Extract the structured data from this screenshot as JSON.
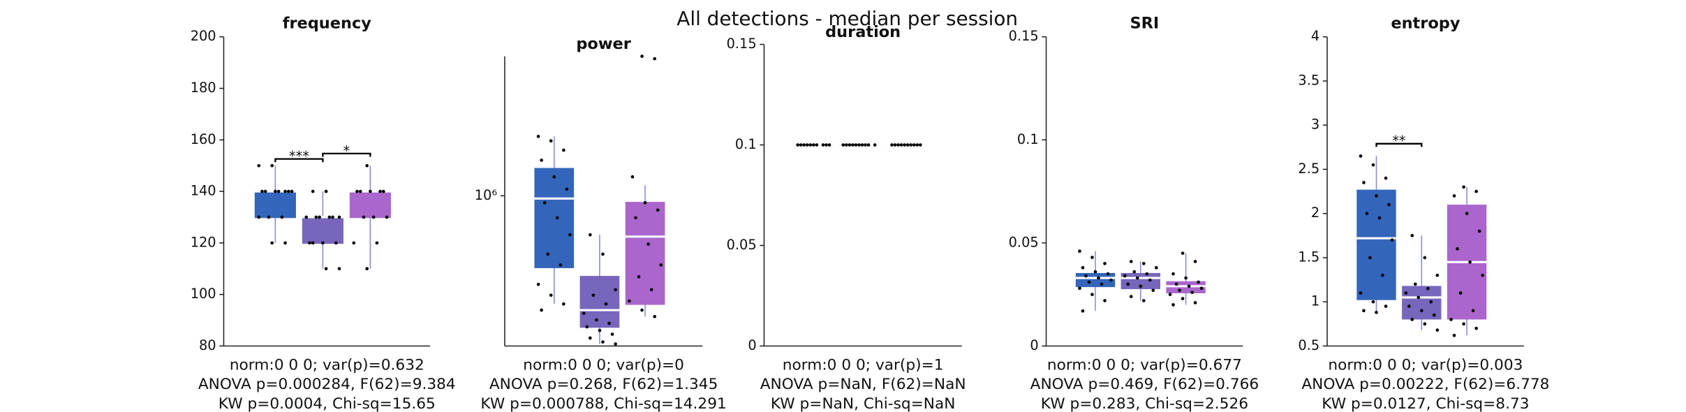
{
  "title": "All detections - median per session",
  "chart_data": [
    {
      "type": "box",
      "title": "frequency",
      "ylim": [
        80,
        200
      ],
      "yticks": [
        80,
        100,
        120,
        140,
        160,
        180,
        200
      ],
      "colors": [
        "#3366bb",
        "#7766bb",
        "#aa66cc"
      ],
      "median_color": "#ffffff",
      "boxes": [
        {
          "low": 120,
          "q1": 130,
          "median": 140,
          "q3": 140,
          "high": 150,
          "points": [
            150,
            150,
            140,
            140,
            140,
            140,
            140,
            140,
            140,
            130,
            130,
            130,
            120,
            120
          ]
        },
        {
          "low": 110,
          "q1": 120,
          "median": 130,
          "q3": 130,
          "high": 140,
          "points": [
            140,
            140,
            130,
            130,
            130,
            130,
            130,
            130,
            120,
            120,
            120,
            120,
            110,
            110
          ]
        },
        {
          "low": 110,
          "q1": 130,
          "median": 140,
          "q3": 140,
          "high": 150,
          "points": [
            150,
            140,
            140,
            140,
            140,
            140,
            130,
            130,
            130,
            120,
            120,
            110
          ]
        }
      ],
      "brackets": [
        {
          "between": [
            0,
            1
          ],
          "y": 152.6,
          "label": "***"
        },
        {
          "between": [
            1,
            2
          ],
          "y": 154.7,
          "label": "*"
        }
      ],
      "notes": [
        "norm:0  0  0; var(p)=0.632",
        "ANOVA p=0.000284, F(62)=9.384",
        "KW p=0.0004, Chi-sq=15.65"
      ]
    },
    {
      "type": "box",
      "title": "power",
      "log": true,
      "ylim": [
        330000,
        2800000
      ],
      "yticks": [
        {
          "value": 1000000,
          "label": "10⁶"
        }
      ],
      "colors": [
        "#3366bb",
        "#7766bb",
        "#aa66cc"
      ],
      "median_color": "#ffffff",
      "boxes": [
        {
          "low": 450000,
          "q1": 590000,
          "median": 980000,
          "q3": 1220000,
          "high": 1550000,
          "points": [
            1550000,
            1500000,
            1400000,
            1300000,
            1150000,
            1050000,
            950000,
            850000,
            750000,
            650000,
            600000,
            520000,
            480000,
            450000,
            430000
          ]
        },
        {
          "low": 335000,
          "q1": 380000,
          "median": 430000,
          "q3": 550000,
          "high": 750000,
          "points": [
            750000,
            650000,
            500000,
            480000,
            450000,
            420000,
            400000,
            390000,
            380000,
            370000,
            360000,
            350000,
            340000,
            335000
          ]
        },
        {
          "low": 410000,
          "q1": 450000,
          "median": 740000,
          "q3": 950000,
          "high": 1080000,
          "points": [
            2800000,
            2750000,
            1150000,
            950000,
            900000,
            850000,
            700000,
            600000,
            550000,
            500000,
            460000,
            430000,
            410000
          ]
        }
      ],
      "brackets": [],
      "notes": [
        "norm:0  0  0; var(p)=0",
        "ANOVA p=0.268, F(62)=1.345",
        "KW p=0.000788, Chi-sq=14.291"
      ]
    },
    {
      "type": "box",
      "title": "duration",
      "ylim": [
        0,
        0.15
      ],
      "yticks": [
        0,
        0.05,
        0.1,
        0.15
      ],
      "colors": [
        "#3366bb",
        "#7766bb",
        "#aa66cc"
      ],
      "median_color": "#ffffff",
      "boxes": [
        {
          "low": 0.1,
          "q1": 0.1,
          "median": 0.1,
          "q3": 0.1,
          "high": 0.1,
          "points": [
            0.1,
            0.1,
            0.1,
            0.1,
            0.1,
            0.1,
            0.1,
            0.1,
            0.1,
            0.1
          ]
        },
        {
          "low": 0.1,
          "q1": 0.1,
          "median": 0.1,
          "q3": 0.1,
          "high": 0.1,
          "points": [
            0.1,
            0.1,
            0.1,
            0.1,
            0.1,
            0.1,
            0.1,
            0.1,
            0.1,
            0.1
          ]
        },
        {
          "low": 0.1,
          "q1": 0.1,
          "median": 0.1,
          "q3": 0.1,
          "high": 0.1,
          "points": [
            0.1,
            0.1,
            0.1,
            0.1,
            0.1,
            0.1,
            0.1,
            0.1,
            0.1,
            0.1
          ]
        }
      ],
      "brackets": [],
      "notes": [
        "norm:0  0  0; var(p)=1",
        "ANOVA p=NaN, F(62)=NaN",
        "KW p=NaN, Chi-sq=NaN"
      ]
    },
    {
      "type": "box",
      "title": "SRI",
      "ylim": [
        0,
        0.15
      ],
      "yticks": [
        0,
        0.05,
        0.1,
        0.15
      ],
      "colors": [
        "#3366bb",
        "#7766bb",
        "#aa66cc"
      ],
      "median_color": "#ffffff",
      "boxes": [
        {
          "low": 0.017,
          "q1": 0.029,
          "median": 0.033,
          "q3": 0.035,
          "high": 0.046,
          "points": [
            0.046,
            0.043,
            0.04,
            0.038,
            0.036,
            0.035,
            0.034,
            0.033,
            0.032,
            0.031,
            0.03,
            0.028,
            0.025,
            0.022,
            0.017
          ]
        },
        {
          "low": 0.022,
          "q1": 0.028,
          "median": 0.033,
          "q3": 0.035,
          "high": 0.041,
          "points": [
            0.041,
            0.04,
            0.038,
            0.036,
            0.035,
            0.034,
            0.033,
            0.032,
            0.03,
            0.029,
            0.027,
            0.024,
            0.022
          ]
        },
        {
          "low": 0.02,
          "q1": 0.026,
          "median": 0.029,
          "q3": 0.031,
          "high": 0.045,
          "points": [
            0.045,
            0.041,
            0.035,
            0.033,
            0.031,
            0.03,
            0.029,
            0.028,
            0.027,
            0.026,
            0.025,
            0.023,
            0.021,
            0.02
          ]
        }
      ],
      "brackets": [],
      "notes": [
        "norm:0  0  0; var(p)=0.677",
        "ANOVA p=0.469, F(62)=0.766",
        "KW p=0.283, Chi-sq=2.526"
      ]
    },
    {
      "type": "box",
      "title": "entropy",
      "ylim": [
        0.5,
        4
      ],
      "yticks": [
        0.5,
        1,
        1.5,
        2,
        2.5,
        3,
        3.5,
        4
      ],
      "colors": [
        "#3366bb",
        "#7766bb",
        "#aa66cc"
      ],
      "median_color": "#ffffff",
      "boxes": [
        {
          "low": 0.88,
          "q1": 1.03,
          "median": 1.72,
          "q3": 2.26,
          "high": 2.65,
          "points": [
            2.65,
            2.55,
            2.4,
            2.35,
            2.2,
            2.1,
            2.0,
            1.95,
            1.7,
            1.5,
            1.3,
            1.1,
            1.0,
            0.95,
            0.9,
            0.88
          ]
        },
        {
          "low": 0.68,
          "q1": 0.81,
          "median": 1.05,
          "q3": 1.17,
          "high": 1.75,
          "points": [
            1.75,
            1.5,
            1.3,
            1.2,
            1.15,
            1.1,
            1.05,
            1.0,
            0.95,
            0.9,
            0.85,
            0.8,
            0.75,
            0.68
          ]
        },
        {
          "low": 0.62,
          "q1": 0.81,
          "median": 1.45,
          "q3": 2.09,
          "high": 2.3,
          "points": [
            2.3,
            2.25,
            2.2,
            2.0,
            1.8,
            1.6,
            1.45,
            1.3,
            1.1,
            0.9,
            0.8,
            0.75,
            0.7,
            0.62
          ]
        }
      ],
      "brackets": [
        {
          "between": [
            0,
            1
          ],
          "y": 2.79,
          "label": "**"
        }
      ],
      "notes": [
        "norm:0  0  0; var(p)=0.003",
        "ANOVA p=0.00222, F(62)=6.778",
        "KW p=0.0127, Chi-sq=8.73"
      ]
    }
  ]
}
